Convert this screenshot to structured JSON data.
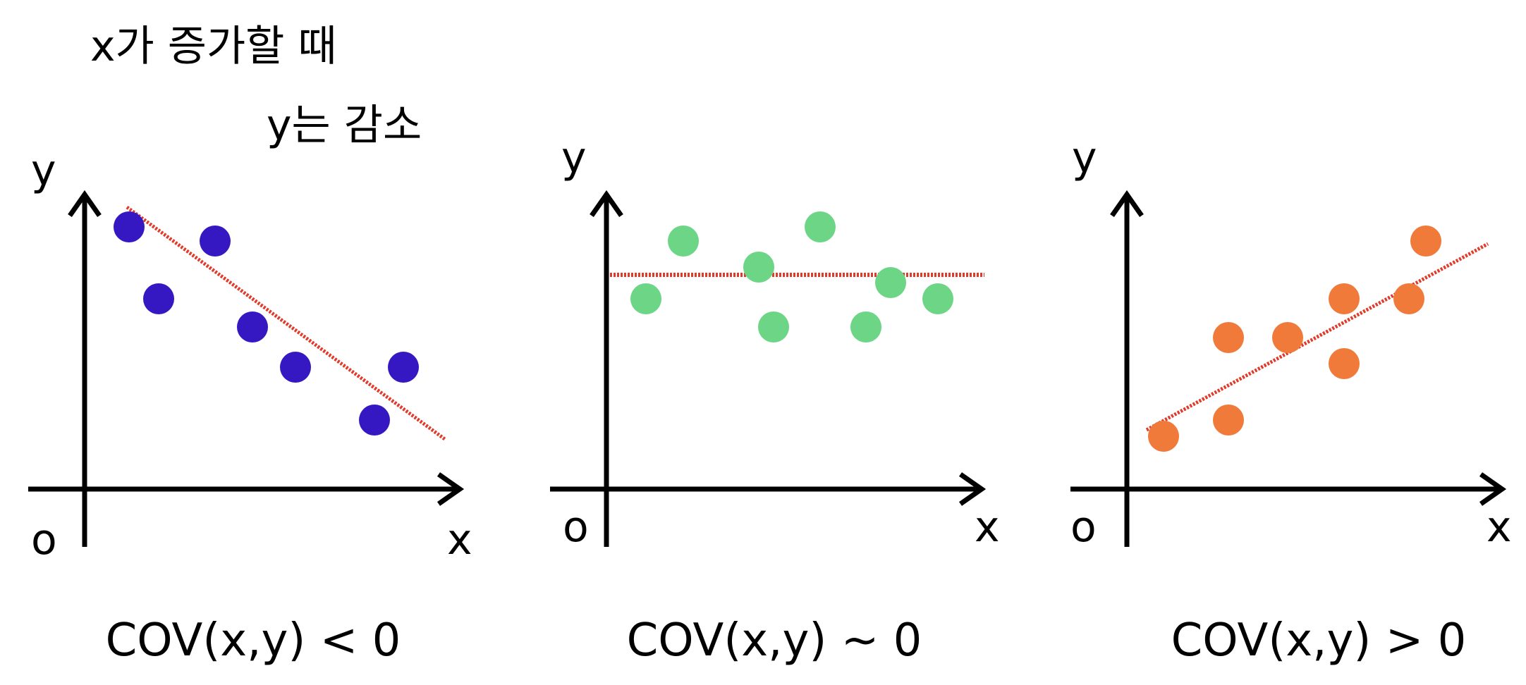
{
  "annotation": {
    "line1": "x가 증가할 때",
    "line2": "y는 감소"
  },
  "panels": [
    {
      "x_label": "x",
      "y_label": "y",
      "origin_label": "o",
      "caption": "COV(x,y) < 0",
      "point_color": "#3618c3",
      "trend_color": "#e03a2a",
      "trend": "decreasing"
    },
    {
      "x_label": "x",
      "y_label": "y",
      "origin_label": "o",
      "caption": "COV(x,y) ~ 0",
      "point_color": "#6dd686",
      "trend_color": "#e03a2a",
      "trend": "flat"
    },
    {
      "x_label": "x",
      "y_label": "y",
      "origin_label": "o",
      "caption": "COV(x,y) > 0",
      "point_color": "#ef7a3a",
      "trend_color": "#e03a2a",
      "trend": "increasing"
    }
  ]
}
